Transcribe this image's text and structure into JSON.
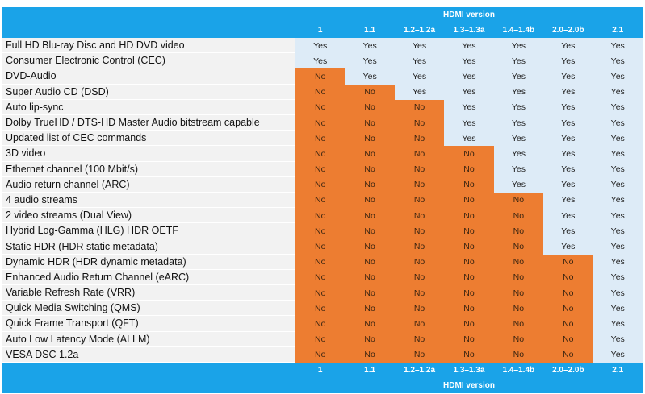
{
  "header_title": "HDMI version",
  "footer_title": "HDMI version",
  "versions": [
    "1",
    "1.1",
    "1.2–1.2a",
    "1.3–1.3a",
    "1.4–1.4b",
    "2.0–2.0b",
    "2.1"
  ],
  "colors": {
    "header": "#1aa3e8",
    "yes": "#ddebf7",
    "no": "#ed7d31",
    "label_bg": "#f2f2f2"
  },
  "rows": [
    {
      "feature": "Full HD Blu-ray Disc and HD DVD video",
      "values": [
        "Yes",
        "Yes",
        "Yes",
        "Yes",
        "Yes",
        "Yes",
        "Yes"
      ]
    },
    {
      "feature": "Consumer Electronic Control (CEC)",
      "values": [
        "Yes",
        "Yes",
        "Yes",
        "Yes",
        "Yes",
        "Yes",
        "Yes"
      ]
    },
    {
      "feature": "DVD-Audio",
      "values": [
        "No",
        "Yes",
        "Yes",
        "Yes",
        "Yes",
        "Yes",
        "Yes"
      ]
    },
    {
      "feature": "Super Audio CD (DSD)",
      "values": [
        "No",
        "No",
        "Yes",
        "Yes",
        "Yes",
        "Yes",
        "Yes"
      ]
    },
    {
      "feature": "Auto lip-sync",
      "values": [
        "No",
        "No",
        "No",
        "Yes",
        "Yes",
        "Yes",
        "Yes"
      ]
    },
    {
      "feature": "Dolby TrueHD / DTS-HD Master Audio bitstream capable",
      "values": [
        "No",
        "No",
        "No",
        "Yes",
        "Yes",
        "Yes",
        "Yes"
      ]
    },
    {
      "feature": "Updated list of CEC commands",
      "values": [
        "No",
        "No",
        "No",
        "Yes",
        "Yes",
        "Yes",
        "Yes"
      ]
    },
    {
      "feature": "3D video",
      "values": [
        "No",
        "No",
        "No",
        "No",
        "Yes",
        "Yes",
        "Yes"
      ]
    },
    {
      "feature": "Ethernet channel (100 Mbit/s)",
      "values": [
        "No",
        "No",
        "No",
        "No",
        "Yes",
        "Yes",
        "Yes"
      ]
    },
    {
      "feature": "Audio return channel (ARC)",
      "values": [
        "No",
        "No",
        "No",
        "No",
        "Yes",
        "Yes",
        "Yes"
      ]
    },
    {
      "feature": "4 audio streams",
      "values": [
        "No",
        "No",
        "No",
        "No",
        "No",
        "Yes",
        "Yes"
      ]
    },
    {
      "feature": "2 video streams (Dual View)",
      "values": [
        "No",
        "No",
        "No",
        "No",
        "No",
        "Yes",
        "Yes"
      ]
    },
    {
      "feature": "Hybrid Log-Gamma (HLG) HDR OETF",
      "values": [
        "No",
        "No",
        "No",
        "No",
        "No",
        "Yes",
        "Yes"
      ]
    },
    {
      "feature": "Static HDR (HDR static metadata)",
      "values": [
        "No",
        "No",
        "No",
        "No",
        "No",
        "Yes",
        "Yes"
      ]
    },
    {
      "feature": "Dynamic HDR (HDR dynamic metadata)",
      "values": [
        "No",
        "No",
        "No",
        "No",
        "No",
        "No",
        "Yes"
      ]
    },
    {
      "feature": "Enhanced Audio Return Channel (eARC)",
      "values": [
        "No",
        "No",
        "No",
        "No",
        "No",
        "No",
        "Yes"
      ]
    },
    {
      "feature": "Variable Refresh Rate (VRR)",
      "values": [
        "No",
        "No",
        "No",
        "No",
        "No",
        "No",
        "Yes"
      ]
    },
    {
      "feature": "Quick Media Switching (QMS)",
      "values": [
        "No",
        "No",
        "No",
        "No",
        "No",
        "No",
        "Yes"
      ]
    },
    {
      "feature": "Quick Frame Transport (QFT)",
      "values": [
        "No",
        "No",
        "No",
        "No",
        "No",
        "No",
        "Yes"
      ]
    },
    {
      "feature": "Auto Low Latency Mode (ALLM)",
      "values": [
        "No",
        "No",
        "No",
        "No",
        "No",
        "No",
        "Yes"
      ]
    },
    {
      "feature": "VESA DSC 1.2a",
      "values": [
        "No",
        "No",
        "No",
        "No",
        "No",
        "No",
        "Yes"
      ]
    }
  ]
}
